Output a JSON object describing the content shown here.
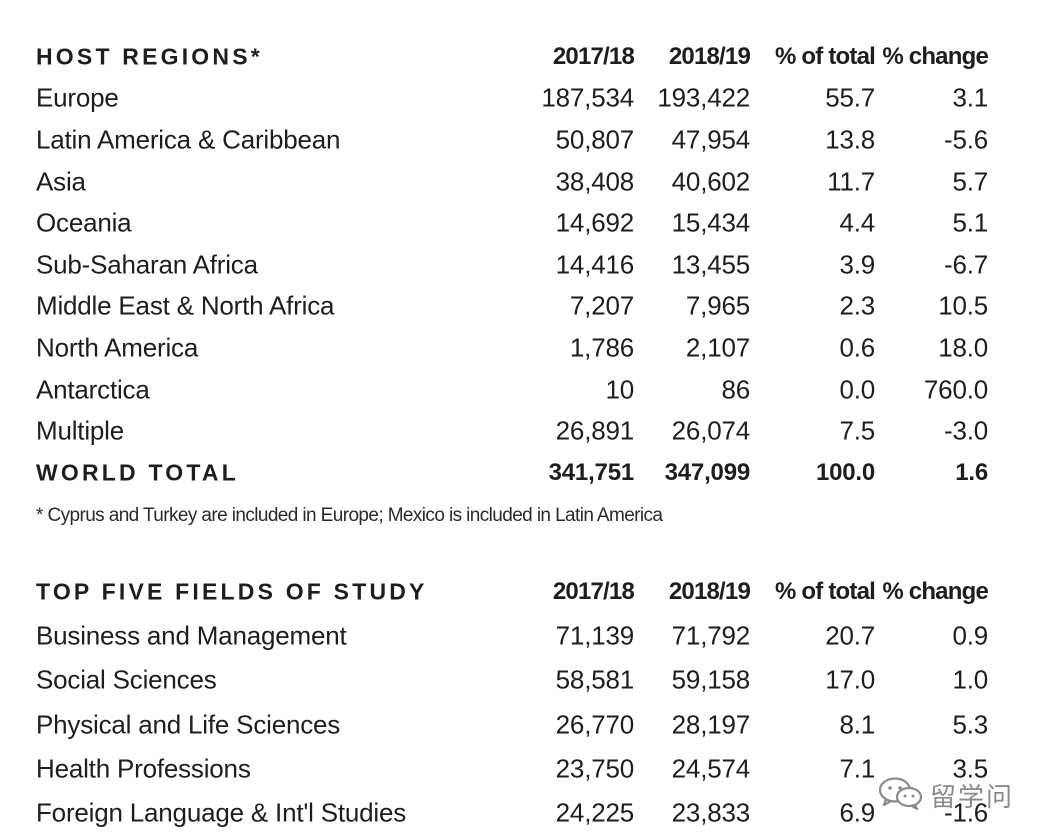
{
  "host_regions": {
    "header": {
      "label": "HOST REGIONS*",
      "col1": "2017/18",
      "col2": "2018/19",
      "col3": "% of total",
      "col4": "% change"
    },
    "rows": [
      {
        "name": "Europe",
        "y1": "187,534",
        "y2": "193,422",
        "pct": "55.7",
        "chg": "3.1"
      },
      {
        "name": "Latin America & Caribbean",
        "y1": "50,807",
        "y2": "47,954",
        "pct": "13.8",
        "chg": "-5.6"
      },
      {
        "name": "Asia",
        "y1": "38,408",
        "y2": "40,602",
        "pct": "11.7",
        "chg": "5.7"
      },
      {
        "name": "Oceania",
        "y1": "14,692",
        "y2": "15,434",
        "pct": "4.4",
        "chg": "5.1"
      },
      {
        "name": "Sub-Saharan Africa",
        "y1": "14,416",
        "y2": "13,455",
        "pct": "3.9",
        "chg": "-6.7"
      },
      {
        "name": "Middle East & North Africa",
        "y1": "7,207",
        "y2": "7,965",
        "pct": "2.3",
        "chg": "10.5"
      },
      {
        "name": "North America",
        "y1": "1,786",
        "y2": "2,107",
        "pct": "0.6",
        "chg": "18.0"
      },
      {
        "name": "Antarctica",
        "y1": "10",
        "y2": "86",
        "pct": "0.0",
        "chg": "760.0"
      },
      {
        "name": "Multiple",
        "y1": "26,891",
        "y2": "26,074",
        "pct": "7.5",
        "chg": "-3.0"
      }
    ],
    "total": {
      "name": "WORLD TOTAL",
      "y1": "341,751",
      "y2": "347,099",
      "pct": "100.0",
      "chg": "1.6"
    },
    "footnote": "* Cyprus and Turkey are included in Europe; Mexico is included in Latin America"
  },
  "fields": {
    "header": {
      "label": "TOP FIVE FIELDS OF STUDY",
      "col1": "2017/18",
      "col2": "2018/19",
      "col3": "% of total",
      "col4": "% change"
    },
    "rows": [
      {
        "name": "Business and Management",
        "y1": "71,139",
        "y2": "71,792",
        "pct": "20.7",
        "chg": "0.9"
      },
      {
        "name": "Social Sciences",
        "y1": "58,581",
        "y2": "59,158",
        "pct": "17.0",
        "chg": "1.0"
      },
      {
        "name": "Physical and Life Sciences",
        "y1": "26,770",
        "y2": "28,197",
        "pct": "8.1",
        "chg": "5.3"
      },
      {
        "name": "Health Professions",
        "y1": "23,750",
        "y2": "24,574",
        "pct": "7.1",
        "chg": "3.5"
      },
      {
        "name": "Foreign Language & Int'l Studies",
        "y1": "24,225",
        "y2": "23,833",
        "pct": "6.9",
        "chg": "-1.6"
      }
    ]
  },
  "watermark": {
    "icon": "wechat-icon",
    "text": "留学问"
  }
}
